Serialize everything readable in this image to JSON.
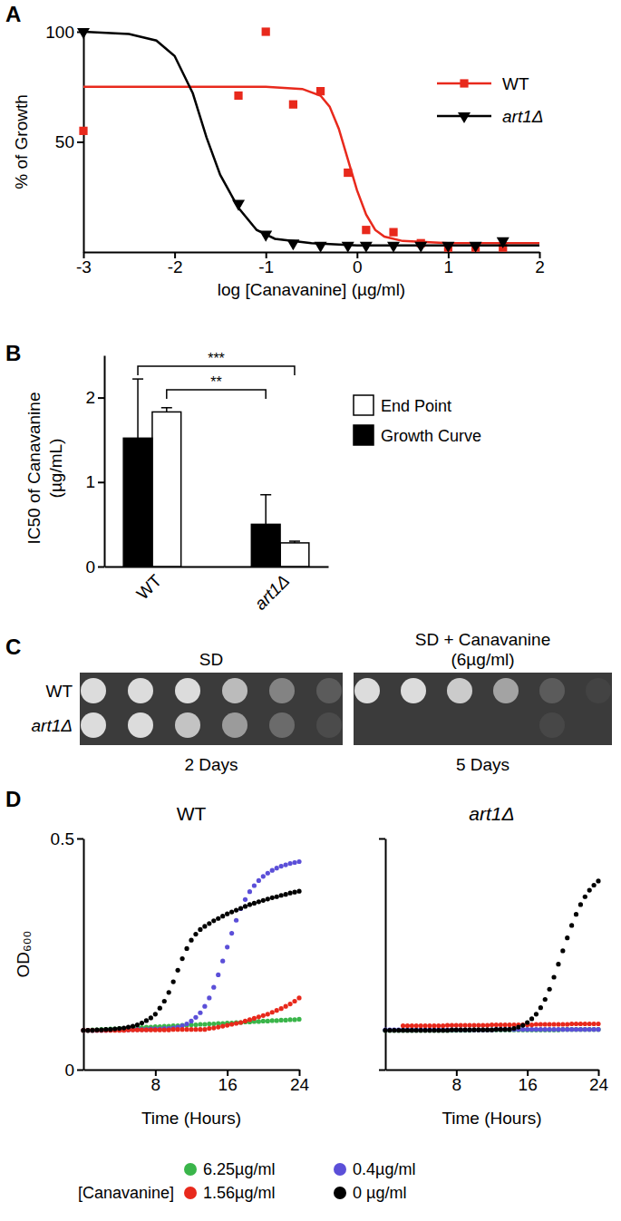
{
  "chart_data": [
    {
      "type": "scatter",
      "panel_label": "A",
      "x_label": "log [Canavanine] (µg/ml)",
      "y_label": "% of Growth",
      "xlim": [
        -3,
        2
      ],
      "xticks": [
        -3,
        -2,
        -1,
        0,
        1,
        2
      ],
      "ylim": [
        0,
        100
      ],
      "yticks": [
        50,
        100
      ],
      "legend": "upper right",
      "series": [
        {
          "name": "WT",
          "color": "#e8291c",
          "marker": "square",
          "x": [
            -3,
            -1.3,
            -1,
            -0.7,
            -0.4,
            -0.1,
            0.1,
            0.4,
            0.7,
            1,
            1.3,
            1.6
          ],
          "values": [
            55,
            71,
            100,
            67,
            73,
            36,
            10,
            9,
            4,
            2,
            2,
            2
          ],
          "fit_x": [
            -3,
            -1,
            -0.6,
            -0.4,
            -0.3,
            -0.2,
            -0.1,
            0,
            0.1,
            0.2,
            0.3,
            0.5,
            1,
            2
          ],
          "fit_values": [
            75,
            75,
            74,
            71,
            66,
            56,
            42,
            28,
            17,
            10,
            7,
            5,
            4,
            4
          ]
        },
        {
          "name": "art1Δ",
          "color": "#000000",
          "marker": "triangle-down",
          "x": [
            -3,
            -1.3,
            -1,
            -0.7,
            -0.4,
            -0.1,
            0.1,
            0.4,
            0.7,
            1,
            1.3,
            1.6
          ],
          "values": [
            100,
            22,
            8,
            4,
            3,
            3,
            3,
            3,
            3,
            3,
            3,
            5
          ],
          "fit_x": [
            -3,
            -2.5,
            -2.2,
            -2,
            -1.8,
            -1.65,
            -1.5,
            -1.3,
            -1.1,
            -0.9,
            -0.5,
            0,
            2
          ],
          "fit_values": [
            100,
            99,
            96,
            89,
            72,
            52,
            35,
            20,
            10,
            6,
            4,
            3,
            3
          ]
        }
      ]
    },
    {
      "type": "bar",
      "panel_label": "B",
      "y_label": [
        "IC50 of Canavanine",
        "(µg/mL)"
      ],
      "categories": [
        "WT",
        "art1Δ"
      ],
      "ylim": [
        0,
        2.5
      ],
      "yticks": [
        0,
        1,
        2
      ],
      "legend": "right",
      "series": [
        {
          "name": "End Point",
          "color": "#ffffff",
          "values": [
            1.83,
            0.28
          ],
          "errors": [
            0.05,
            0.02
          ]
        },
        {
          "name": "Growth Curve",
          "color": "#000000",
          "values": [
            1.52,
            0.5
          ],
          "errors": [
            0.7,
            0.35
          ]
        }
      ],
      "annotations": [
        "**",
        "***"
      ]
    },
    {
      "type": "spot_assay",
      "panel_label": "C",
      "rows": [
        "WT",
        "art1Δ"
      ],
      "plates": [
        {
          "title": [
            "SD"
          ],
          "caption": "2 Days",
          "growth": [
            [
              1,
              1,
              1,
              0.8,
              0.45,
              0.2
            ],
            [
              1,
              1,
              0.85,
              0.6,
              0.3,
              0.1
            ]
          ]
        },
        {
          "title": [
            "SD + Canavanine",
            "(6µg/ml)"
          ],
          "caption": "5 Days",
          "growth": [
            [
              1,
              1,
              0.9,
              0.65,
              0.2,
              0.05
            ],
            [
              0,
              0,
              0,
              0,
              0.08,
              0
            ]
          ]
        }
      ]
    },
    {
      "type": "line",
      "panel_label": "D",
      "marker": "circle",
      "line_style": "dotted",
      "x_label": "Time (Hours)",
      "y_label": "OD₆₀₀",
      "facets": [
        "WT",
        "art1Δ"
      ],
      "xlim": [
        0,
        24
      ],
      "xticks": [
        8,
        16,
        24
      ],
      "ylim": [
        0,
        0.5
      ],
      "yticks": [
        0,
        0.5
      ],
      "legend": "bottom",
      "legend_title": "[Canavanine]",
      "x": [
        0,
        0.5,
        1,
        1.5,
        2,
        2.5,
        3,
        3.5,
        4,
        4.5,
        5,
        5.5,
        6,
        6.5,
        7,
        7.5,
        8,
        8.5,
        9,
        9.5,
        10,
        10.5,
        11,
        11.5,
        12,
        12.5,
        13,
        13.5,
        14,
        14.5,
        15,
        15.5,
        16,
        16.5,
        17,
        17.5,
        18,
        18.5,
        19,
        19.5,
        20,
        20.5,
        21,
        21.5,
        22,
        22.5,
        23,
        23.5,
        24
      ],
      "series": [
        {
          "name": "6.25µg/ml",
          "color": "#3ab54a",
          "values": [
            [
              0.085,
              0.085,
              0.086,
              0.086,
              0.087,
              0.087,
              0.088,
              0.088,
              0.089,
              0.089,
              0.09,
              0.09,
              0.091,
              0.091,
              0.092,
              0.092,
              0.093,
              0.093,
              0.094,
              0.094,
              0.095,
              0.095,
              0.096,
              0.096,
              0.097,
              0.097,
              0.098,
              0.098,
              0.099,
              0.099,
              0.1,
              0.1,
              0.101,
              0.101,
              0.102,
              0.102,
              0.103,
              0.103,
              0.104,
              0.104,
              0.105,
              0.105,
              0.106,
              0.106,
              0.107,
              0.107,
              0.108,
              0.108,
              0.109
            ],
            [
              0.085,
              0.085,
              0.085,
              0.085,
              0.085,
              0.085,
              0.085,
              0.085,
              0.085,
              0.085,
              0.085,
              0.085,
              0.085,
              0.085,
              0.085,
              0.085,
              0.085,
              0.085,
              0.085,
              0.085,
              0.086,
              0.086,
              0.086,
              0.086,
              0.086,
              0.086,
              0.086,
              0.086,
              0.086,
              0.086,
              0.086,
              0.086,
              0.086,
              0.086,
              0.086,
              0.086,
              0.086,
              0.086,
              0.086,
              0.086,
              0.087,
              0.087,
              0.087,
              0.087,
              0.087,
              0.087,
              0.087,
              0.087,
              0.087
            ]
          ]
        },
        {
          "name": "0.4µg/ml",
          "color": "#5b4fd8",
          "values": [
            [
              0.085,
              0.085,
              0.085,
              0.085,
              0.085,
              0.085,
              0.086,
              0.086,
              0.086,
              0.086,
              0.086,
              0.087,
              0.087,
              0.087,
              0.087,
              0.088,
              0.088,
              0.088,
              0.089,
              0.089,
              0.09,
              0.092,
              0.095,
              0.099,
              0.105,
              0.113,
              0.123,
              0.137,
              0.155,
              0.178,
              0.205,
              0.235,
              0.265,
              0.295,
              0.323,
              0.348,
              0.368,
              0.385,
              0.398,
              0.409,
              0.418,
              0.425,
              0.431,
              0.436,
              0.44,
              0.443,
              0.446,
              0.448,
              0.45
            ],
            [
              0.086,
              0.086,
              0.086,
              0.086,
              0.086,
              0.086,
              0.086,
              0.086,
              0.086,
              0.086,
              0.086,
              0.086,
              0.086,
              0.086,
              0.086,
              0.086,
              0.086,
              0.086,
              0.086,
              0.086,
              0.086,
              0.086,
              0.086,
              0.086,
              0.086,
              0.087,
              0.087,
              0.087,
              0.087,
              0.087,
              0.087,
              0.087,
              0.087,
              0.087,
              0.087,
              0.087,
              0.087,
              0.087,
              0.087,
              0.087,
              0.087,
              0.087,
              0.087,
              0.087,
              0.087,
              0.087,
              0.087,
              0.087,
              0.087
            ]
          ]
        },
        {
          "name": "1.56µg/ml",
          "color": "#e8291c",
          "values": [
            [
              0.085,
              0.085,
              0.085,
              0.085,
              0.085,
              0.085,
              0.085,
              0.085,
              0.085,
              0.085,
              0.086,
              0.086,
              0.086,
              0.086,
              0.086,
              0.086,
              0.086,
              0.086,
              0.086,
              0.086,
              0.087,
              0.087,
              0.087,
              0.087,
              0.087,
              0.087,
              0.087,
              0.087,
              0.089,
              0.09,
              0.092,
              0.094,
              0.096,
              0.098,
              0.1,
              0.102,
              0.105,
              0.108,
              0.111,
              0.114,
              0.117,
              0.12,
              0.124,
              0.128,
              0.132,
              0.137,
              0.142,
              0.148,
              0.155
            ],
            [
              null,
              null,
              null,
              null,
              0.095,
              0.095,
              0.095,
              0.095,
              0.095,
              0.095,
              0.095,
              0.095,
              0.095,
              0.095,
              0.096,
              0.096,
              0.096,
              0.096,
              0.096,
              0.096,
              0.096,
              0.096,
              0.096,
              0.096,
              0.097,
              0.097,
              0.097,
              0.097,
              0.097,
              0.097,
              0.097,
              0.097,
              0.097,
              0.097,
              0.098,
              0.098,
              0.098,
              0.098,
              0.098,
              0.098,
              0.098,
              0.098,
              0.099,
              0.099,
              0.099,
              0.099,
              0.099,
              0.099,
              0.099
            ]
          ]
        },
        {
          "name": "0 µg/ml",
          "color": "#000000",
          "values": [
            [
              0.085,
              0.085,
              0.085,
              0.086,
              0.086,
              0.087,
              0.087,
              0.088,
              0.089,
              0.09,
              0.092,
              0.094,
              0.097,
              0.101,
              0.106,
              0.112,
              0.12,
              0.133,
              0.148,
              0.167,
              0.19,
              0.215,
              0.24,
              0.262,
              0.28,
              0.293,
              0.303,
              0.31,
              0.316,
              0.322,
              0.327,
              0.332,
              0.337,
              0.341,
              0.345,
              0.349,
              0.353,
              0.357,
              0.36,
              0.363,
              0.366,
              0.369,
              0.372,
              0.374,
              0.377,
              0.379,
              0.382,
              0.384,
              0.386
            ],
            [
              0.085,
              0.085,
              0.085,
              0.085,
              0.085,
              0.085,
              0.085,
              0.085,
              0.085,
              0.085,
              0.085,
              0.085,
              0.085,
              0.085,
              0.085,
              0.086,
              0.086,
              0.086,
              0.086,
              0.086,
              0.086,
              0.086,
              0.086,
              0.086,
              0.086,
              0.087,
              0.087,
              0.087,
              0.087,
              0.089,
              0.092,
              0.096,
              0.102,
              0.11,
              0.12,
              0.134,
              0.152,
              0.174,
              0.2,
              0.228,
              0.257,
              0.285,
              0.312,
              0.336,
              0.357,
              0.374,
              0.388,
              0.399,
              0.408
            ]
          ]
        }
      ]
    }
  ]
}
